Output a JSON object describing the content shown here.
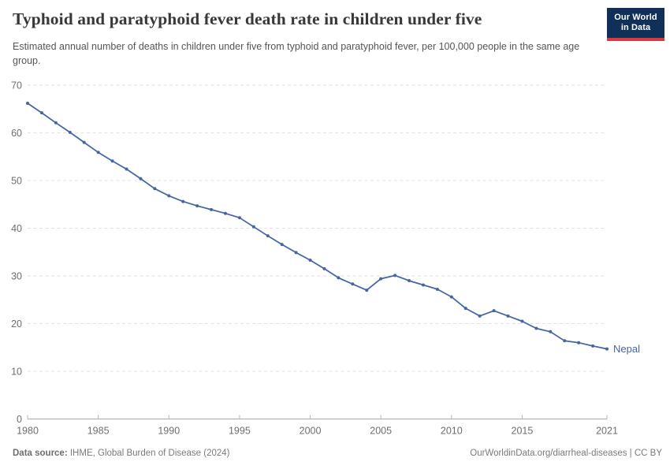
{
  "header": {
    "title": "Typhoid and paratyphoid fever death rate in children under five",
    "subtitle": "Estimated annual number of deaths in children under five from typhoid and paratyphoid fever, per 100,000 people in the same age group.",
    "logo": {
      "line1": "Our World",
      "line2": "in Data"
    }
  },
  "chart_data": {
    "type": "line",
    "title": "Typhoid and paratyphoid fever death rate in children under five",
    "xlabel": "",
    "ylabel": "",
    "xlim": [
      1980,
      2021
    ],
    "ylim": [
      0,
      70
    ],
    "xticks": [
      1980,
      1985,
      1990,
      1995,
      2000,
      2005,
      2010,
      2015,
      2021
    ],
    "yticks": [
      0,
      10,
      20,
      30,
      40,
      50,
      60,
      70
    ],
    "grid": "horizontal-dashed",
    "legend": "end-of-line-label",
    "x": [
      1980,
      1981,
      1982,
      1983,
      1984,
      1985,
      1986,
      1987,
      1988,
      1989,
      1990,
      1991,
      1992,
      1993,
      1994,
      1995,
      1996,
      1997,
      1998,
      1999,
      2000,
      2001,
      2002,
      2003,
      2004,
      2005,
      2006,
      2007,
      2008,
      2009,
      2010,
      2011,
      2012,
      2013,
      2014,
      2015,
      2016,
      2017,
      2018,
      2019,
      2020,
      2021
    ],
    "series": [
      {
        "name": "Nepal",
        "color": "#4665a3",
        "values": [
          66.2,
          64.2,
          62.1,
          60.1,
          58.0,
          55.9,
          54.1,
          52.4,
          50.4,
          48.3,
          46.8,
          45.6,
          44.7,
          43.9,
          43.1,
          42.2,
          40.3,
          38.4,
          36.6,
          34.9,
          33.3,
          31.5,
          29.6,
          28.3,
          27.0,
          29.4,
          30.1,
          29.0,
          28.1,
          27.2,
          25.6,
          23.2,
          21.6,
          22.7,
          21.6,
          20.5,
          19.0,
          18.3,
          16.4,
          16.0,
          15.3,
          14.7
        ]
      }
    ]
  },
  "footer": {
    "source_label": "Data source:",
    "source_text": " IHME, Global Burden of Disease (2024)",
    "rights": "OurWorldinData.org/diarrheal-diseases | CC BY"
  },
  "colors": {
    "line": "#4665a3",
    "grid": "#e2e2e2",
    "axis": "#b3b3b3",
    "tick_label": "#6e6e6e",
    "title": "#383838",
    "subtitle": "#555555",
    "footer": "#7a7a7a",
    "logo_bg": "#10305a",
    "logo_accent": "#d93a3e"
  }
}
